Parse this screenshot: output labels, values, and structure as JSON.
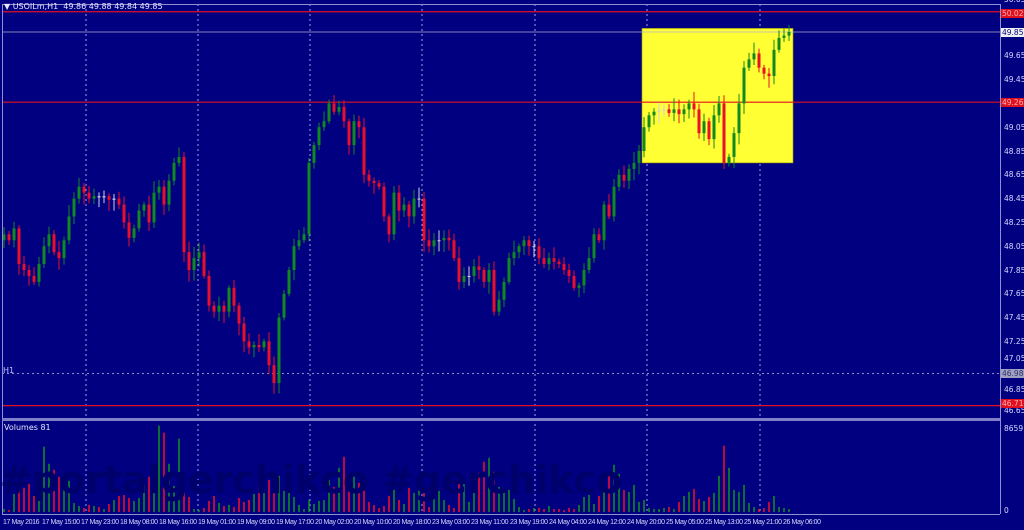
{
  "header": {
    "symbol": "USOILm,H1",
    "ohlc": "49.86 49.88 49.84 49.85"
  },
  "volume_pane": {
    "title": "Volumes 81",
    "max_label": "8659",
    "min_label": "0"
  },
  "watermark": "#portalgerchikco #gerchikco",
  "period_label": "H1",
  "colors": {
    "background": "#000080",
    "bull": "#108a20",
    "bear": "#e8102a",
    "level_line": "#e01020",
    "highlight": "#ffff33",
    "grid": "#c8c8ff"
  },
  "price_axis": {
    "ticks": [
      "50.05",
      "49.65",
      "49.45",
      "49.05",
      "48.85",
      "48.65",
      "48.45",
      "48.25",
      "48.05",
      "47.85",
      "47.65",
      "47.45",
      "47.25",
      "47.05",
      "46.85",
      "46.65"
    ],
    "current_price": "49.85",
    "level_tags": [
      "50.02",
      "49.26",
      "46.71"
    ],
    "period_tag": "46.98"
  },
  "time_axis": [
    "17 May 2016",
    "17 May 15:00",
    "17 May 23:00",
    "18 May 08:00",
    "18 May 16:00",
    "19 May 01:00",
    "19 May 09:00",
    "19 May 17:00",
    "20 May 02:00",
    "20 May 10:00",
    "20 May 18:00",
    "23 May 03:00",
    "23 May 11:00",
    "23 May 19:00",
    "24 May 04:00",
    "24 May 12:00",
    "24 May 20:00",
    "25 May 05:00",
    "25 May 13:00",
    "25 May 21:00",
    "26 May 06:00"
  ],
  "chart_data": {
    "type": "candlestick",
    "timeframe": "H1",
    "ylim": [
      46.6,
      50.05
    ],
    "grid": "vertical dashed",
    "horizontal_levels": [
      50.02,
      49.26,
      46.71
    ],
    "period_line": 46.98,
    "highlight_box": {
      "from_price": 48.75,
      "to_price": 49.88,
      "from_time": "24 May 20:00",
      "to_time": "26 May 08:00"
    },
    "first_open": 48.1,
    "close": [
      48.15,
      48.1,
      48.2,
      47.9,
      47.85,
      47.8,
      47.75,
      47.9,
      48.05,
      48.15,
      48.0,
      47.95,
      48.1,
      48.3,
      48.45,
      48.55,
      48.5,
      48.45,
      48.47,
      48.46,
      48.47,
      48.44,
      48.45,
      48.4,
      48.25,
      48.12,
      48.2,
      48.35,
      48.4,
      48.25,
      48.5,
      48.55,
      48.4,
      48.6,
      48.75,
      48.8,
      48.0,
      47.85,
      47.95,
      48.0,
      47.8,
      47.55,
      47.5,
      47.55,
      47.5,
      47.7,
      47.55,
      47.4,
      47.25,
      47.2,
      47.22,
      47.2,
      47.25,
      47.05,
      46.9,
      47.45,
      47.65,
      47.85,
      48.05,
      48.1,
      48.15,
      48.75,
      48.9,
      49.05,
      49.1,
      49.25,
      49.18,
      49.22,
      49.1,
      48.9,
      49.1,
      49.05,
      48.65,
      48.6,
      48.58,
      48.55,
      48.3,
      48.15,
      48.5,
      48.35,
      48.4,
      48.3,
      48.45,
      48.45,
      48.1,
      48.05,
      48.1,
      48.1,
      48.12,
      48.1,
      47.95,
      47.75,
      47.8,
      47.8,
      47.88,
      47.85,
      47.75,
      47.85,
      47.5,
      47.6,
      47.75,
      47.95,
      48.0,
      48.05,
      48.1,
      48.05,
      48.05,
      47.95,
      47.9,
      47.95,
      47.92,
      47.9,
      47.85,
      47.8,
      47.7,
      47.72,
      47.85,
      47.95,
      48.15,
      48.1,
      48.4,
      48.3,
      48.55,
      48.65,
      48.6,
      48.7,
      48.75,
      48.85,
      49.05,
      49.15,
      49.18,
      49.19,
      49.2,
      49.17,
      49.2,
      49.16,
      49.2,
      49.25,
      49.2,
      49.0,
      49.1,
      48.95,
      49.15,
      49.25,
      48.75,
      48.8,
      49.0,
      49.25,
      49.55,
      49.62,
      49.67,
      49.55,
      49.5,
      49.48,
      49.7,
      49.8,
      49.82,
      49.85
    ],
    "volume": [
      300,
      200,
      1800,
      3100,
      2400,
      2800,
      1600,
      3200,
      6500,
      4800,
      4200,
      3500,
      2800,
      3100,
      900,
      600,
      400,
      700,
      600,
      500,
      300,
      800,
      1200,
      1600,
      1700,
      1400,
      1100,
      1400,
      2700,
      3500,
      4500,
      8600,
      7900,
      4800,
      2600,
      7300,
      2000,
      1500,
      300,
      200,
      400,
      1100,
      1600,
      900,
      600,
      700,
      500,
      1400,
      1000,
      1200,
      1800,
      2600,
      2300,
      3200,
      4000,
      3600,
      2100,
      2900,
      1500,
      700,
      300,
      1200,
      800,
      1100,
      1200,
      3200,
      2500,
      4400,
      5500,
      3700,
      3600,
      2900,
      2300,
      1000,
      700,
      400,
      600,
      1600,
      2200,
      1200,
      800,
      2400,
      1900,
      3200,
      2300,
      500,
      1300,
      2100,
      1200,
      700,
      400,
      3900,
      2900,
      1000,
      2100,
      3900,
      5000,
      5400,
      4000,
      2500,
      2400,
      2200,
      1300,
      500,
      200,
      300,
      400,
      400,
      300,
      600,
      300,
      300,
      200,
      400,
      300,
      700,
      1500,
      1700,
      800,
      1600,
      2800,
      3900,
      4700,
      3800,
      2200,
      2000,
      2700,
      1000,
      1200,
      400,
      300,
      300,
      400,
      500,
      300,
      1000,
      1600,
      2000,
      2300,
      1300,
      1100,
      1500,
      1900,
      3600,
      6600,
      4400,
      2200,
      2000,
      2700,
      900,
      500,
      300,
      400,
      1000,
      1600,
      500,
      400,
      300
    ],
    "volume_max": 8659
  }
}
